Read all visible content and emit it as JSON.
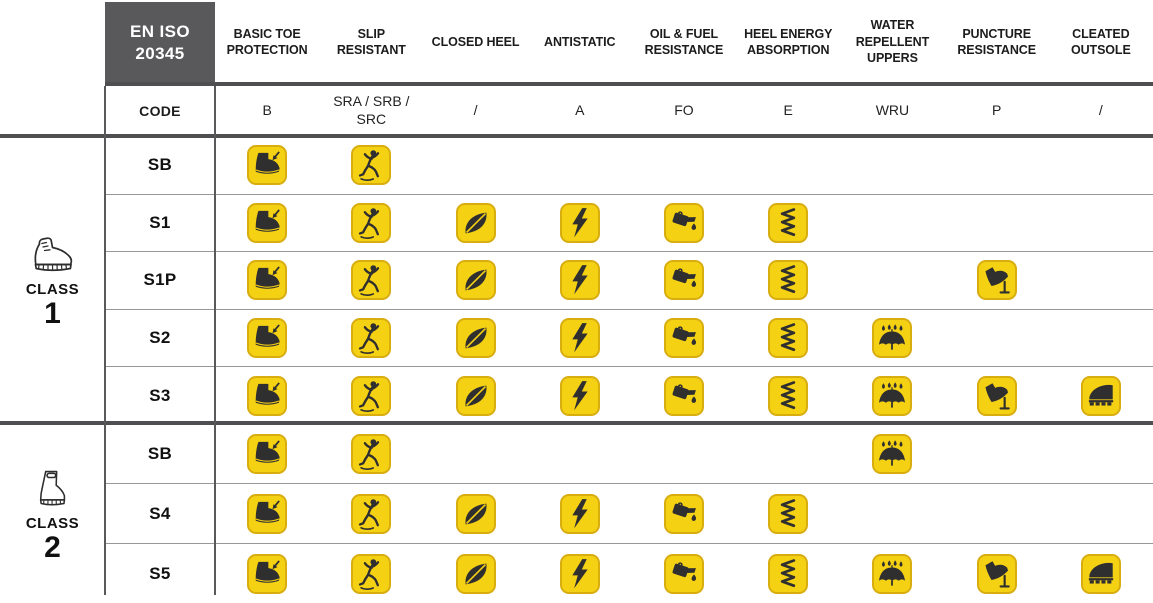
{
  "table": {
    "standard": {
      "line1": "EN ISO",
      "line2": "20345"
    },
    "code_label": "CODE",
    "columns": [
      {
        "label": "BASIC TOE PROTECTION",
        "code": "B",
        "icon": "toe-protection-icon"
      },
      {
        "label": "SLIP RESISTANT",
        "code": "SRA / SRB / SRC",
        "icon": "slip-resistant-icon"
      },
      {
        "label": "CLOSED HEEL",
        "code": "/",
        "icon": "closed-heel-icon"
      },
      {
        "label": "ANTISTATIC",
        "code": "A",
        "icon": "antistatic-icon"
      },
      {
        "label": "OIL & FUEL RESISTANCE",
        "code": "FO",
        "icon": "oil-fuel-resistance-icon"
      },
      {
        "label": "HEEL ENERGY ABSORPTION",
        "code": "E",
        "icon": "heel-energy-absorption-icon"
      },
      {
        "label": "WATER REPELLENT UPPERS",
        "code": "WRU",
        "icon": "water-repellent-uppers-icon"
      },
      {
        "label": "PUNCTURE RESISTANCE",
        "code": "P",
        "icon": "puncture-resistance-icon"
      },
      {
        "label": "CLEATED OUTSOLE",
        "code": "/",
        "icon": "cleated-outsole-icon"
      }
    ],
    "classes": [
      {
        "label": "CLASS",
        "number": "1",
        "icon": "hiking-boot-icon",
        "rows": [
          {
            "label": "SB",
            "features": [
              0,
              1
            ]
          },
          {
            "label": "S1",
            "features": [
              0,
              1,
              2,
              3,
              4,
              5
            ]
          },
          {
            "label": "S1P",
            "features": [
              0,
              1,
              2,
              3,
              4,
              5,
              7
            ]
          },
          {
            "label": "S2",
            "features": [
              0,
              1,
              2,
              3,
              4,
              5,
              6
            ]
          },
          {
            "label": "S3",
            "features": [
              0,
              1,
              2,
              3,
              4,
              5,
              6,
              7,
              8
            ]
          }
        ]
      },
      {
        "label": "CLASS",
        "number": "2",
        "icon": "rubber-boot-icon",
        "rows": [
          {
            "label": "SB",
            "features": [
              0,
              1,
              6
            ]
          },
          {
            "label": "S4",
            "features": [
              0,
              1,
              2,
              3,
              4,
              5
            ]
          },
          {
            "label": "S5",
            "features": [
              0,
              1,
              2,
              3,
              4,
              5,
              6,
              7,
              8
            ]
          }
        ]
      }
    ],
    "colors": {
      "badge_yellow": "#F5D113",
      "badge_border": "#D8AD10",
      "pictogram": "#2F2F30",
      "standard_box_bg": "#59595B",
      "thick_rule": "#4F4F51",
      "thin_rule": "#979797"
    }
  },
  "chart_data": {
    "type": "table",
    "title": "EN ISO 20345",
    "columns": [
      "BASIC TOE PROTECTION",
      "SLIP RESISTANT",
      "CLOSED HEEL",
      "ANTISTATIC",
      "OIL & FUEL RESISTANCE",
      "HEEL ENERGY ABSORPTION",
      "WATER REPELLENT UPPERS",
      "PUNCTURE RESISTANCE",
      "CLEATED OUTSOLE"
    ],
    "column_codes": [
      "B",
      "SRA / SRB / SRC",
      "/",
      "A",
      "FO",
      "E",
      "WRU",
      "P",
      "/"
    ],
    "rows": [
      {
        "class": "1",
        "rating": "SB",
        "features": [
          1,
          1,
          0,
          0,
          0,
          0,
          0,
          0,
          0
        ]
      },
      {
        "class": "1",
        "rating": "S1",
        "features": [
          1,
          1,
          1,
          1,
          1,
          1,
          0,
          0,
          0
        ]
      },
      {
        "class": "1",
        "rating": "S1P",
        "features": [
          1,
          1,
          1,
          1,
          1,
          1,
          0,
          1,
          0
        ]
      },
      {
        "class": "1",
        "rating": "S2",
        "features": [
          1,
          1,
          1,
          1,
          1,
          1,
          1,
          0,
          0
        ]
      },
      {
        "class": "1",
        "rating": "S3",
        "features": [
          1,
          1,
          1,
          1,
          1,
          1,
          1,
          1,
          1
        ]
      },
      {
        "class": "2",
        "rating": "SB",
        "features": [
          1,
          1,
          0,
          0,
          0,
          0,
          1,
          0,
          0
        ]
      },
      {
        "class": "2",
        "rating": "S4",
        "features": [
          1,
          1,
          1,
          1,
          1,
          1,
          0,
          0,
          0
        ]
      },
      {
        "class": "2",
        "rating": "S5",
        "features": [
          1,
          1,
          1,
          1,
          1,
          1,
          1,
          1,
          1
        ]
      }
    ],
    "legend_position": "none",
    "grid": true
  }
}
